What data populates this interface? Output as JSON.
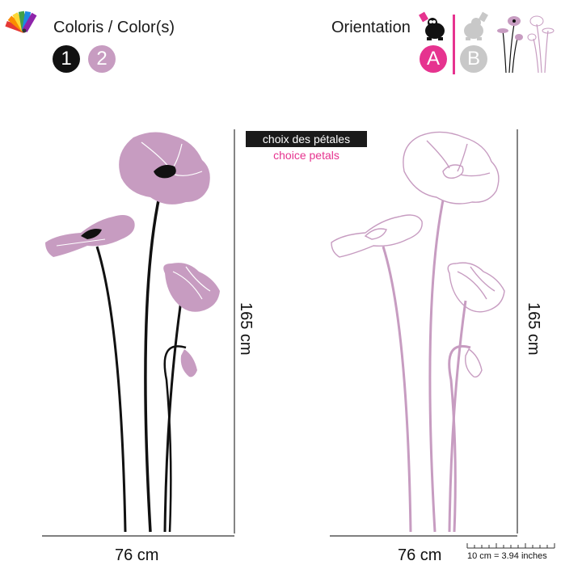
{
  "header": {
    "colors_label": "Coloris / Color(s)",
    "orientation_label": "Orientation",
    "color_choices": [
      {
        "label": "1",
        "color": "#111111"
      },
      {
        "label": "2",
        "color": "#c79cc1"
      }
    ],
    "orientation_choices": [
      {
        "label": "A",
        "color": "#e6338f"
      },
      {
        "label": "B",
        "color": "#c8c8c8"
      }
    ]
  },
  "petal_choice": {
    "fr": "choix des pétales",
    "en": "choice petals"
  },
  "dimensions": {
    "left_width": "76 cm",
    "left_height": "165 cm",
    "right_width": "76 cm",
    "right_height": "165 cm"
  },
  "scale_note": "10 cm = 3.94 inches",
  "colors": {
    "pink": "#c79cc1",
    "magenta": "#e6338f",
    "black": "#111111",
    "grey": "#c8c8c8"
  }
}
